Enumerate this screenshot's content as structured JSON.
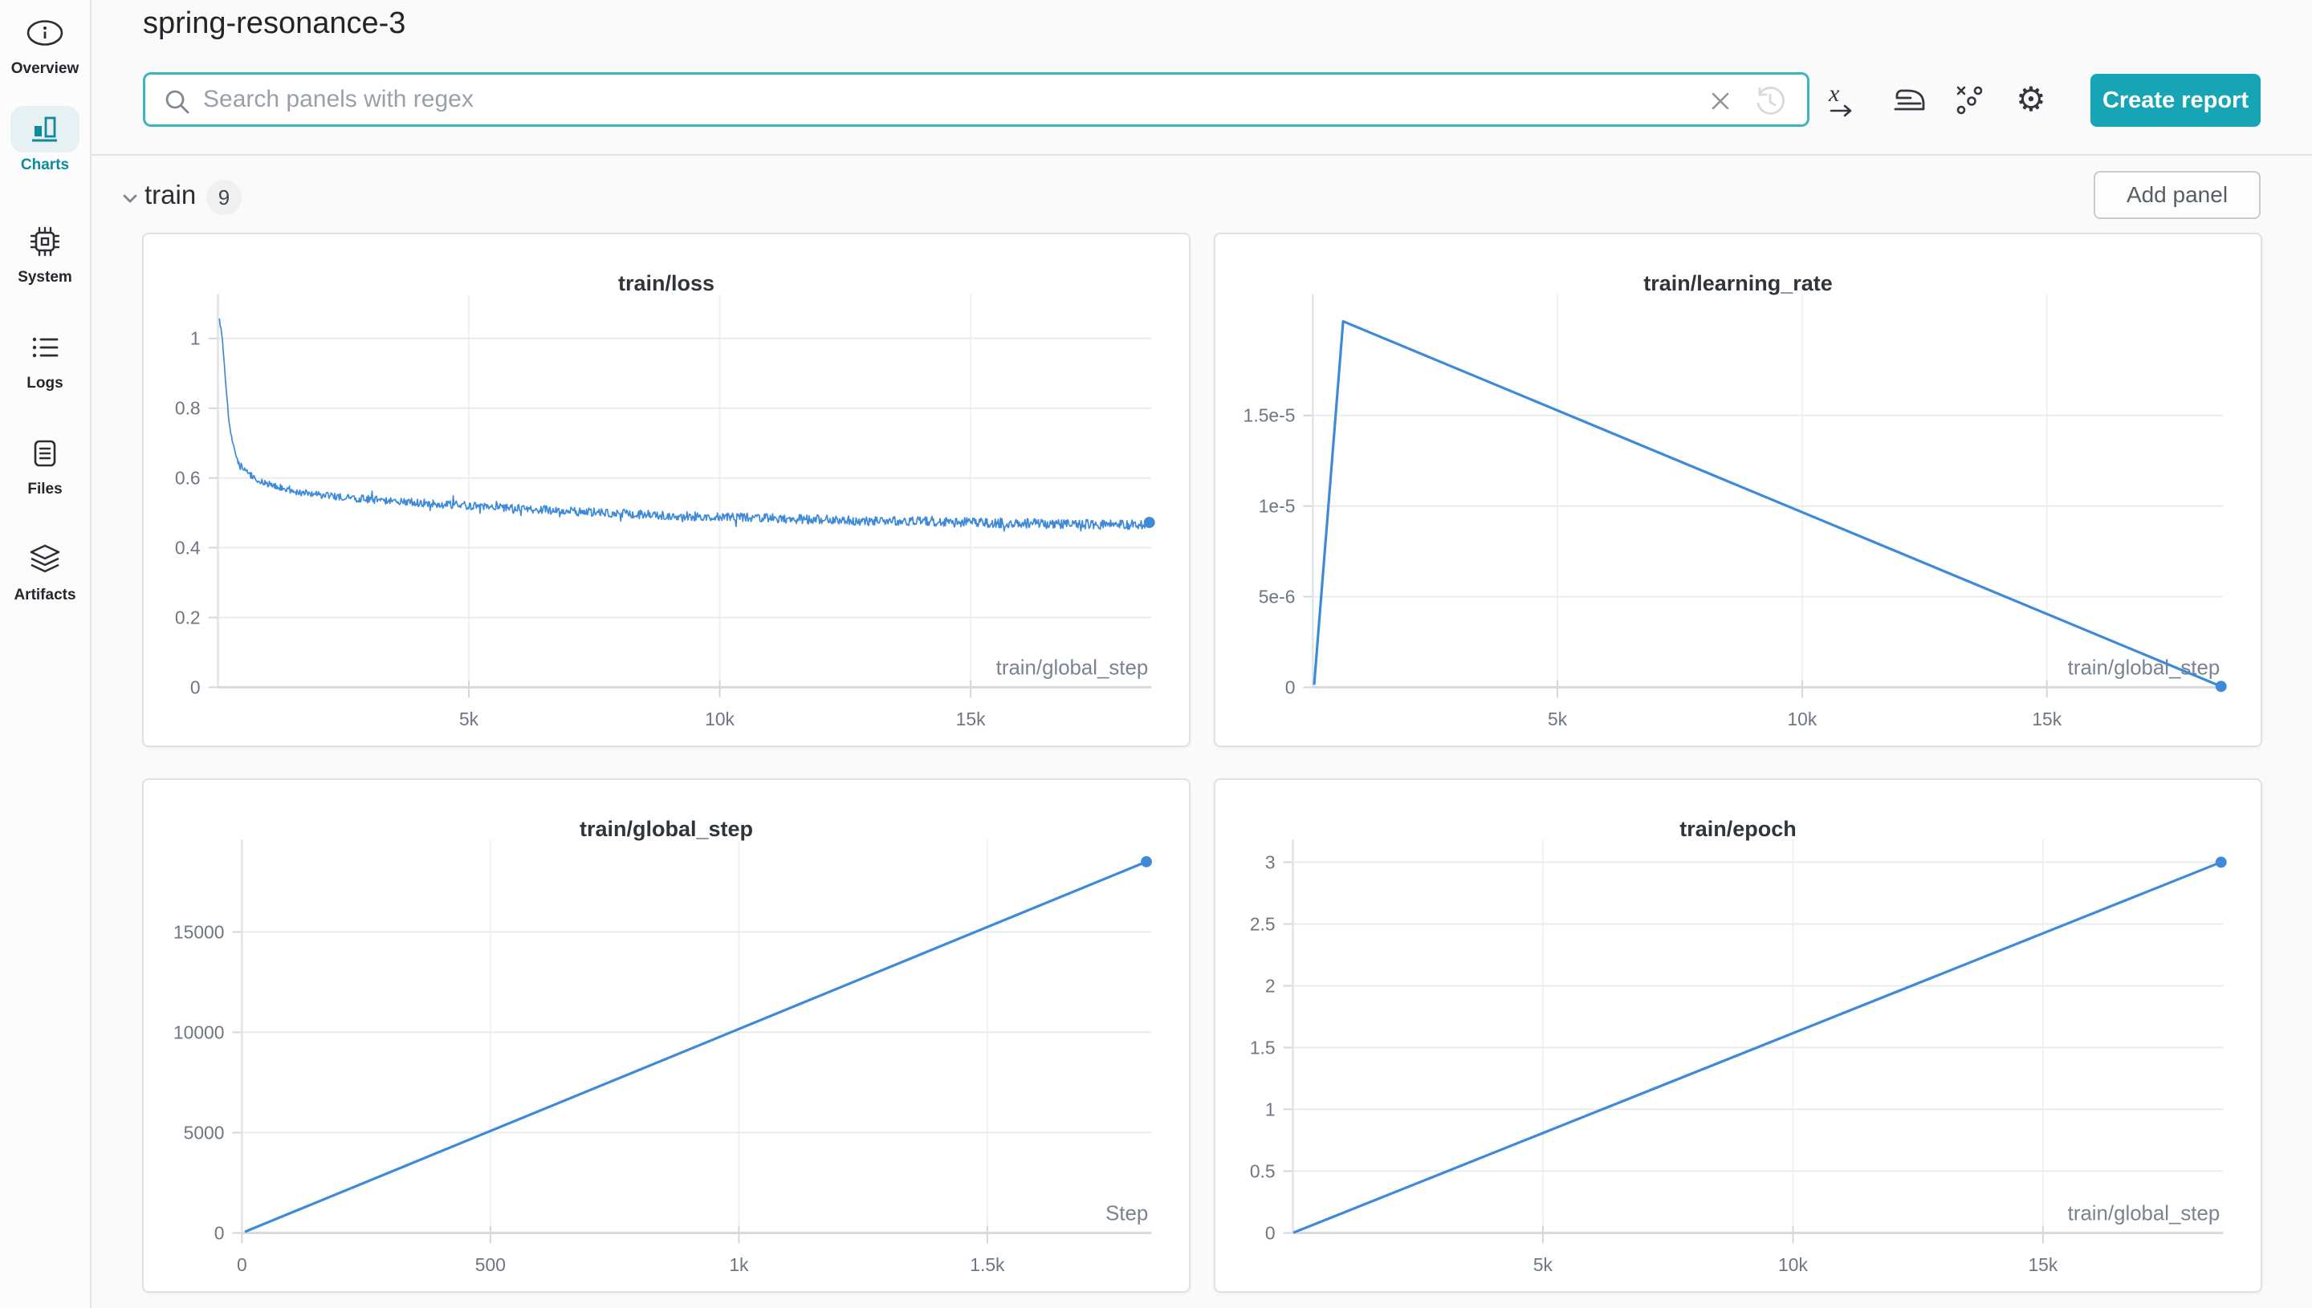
{
  "header": {
    "title": "spring-resonance-3"
  },
  "sidebar": {
    "items": [
      {
        "label": "Overview",
        "icon": "info-icon",
        "active": false
      },
      {
        "label": "Charts",
        "icon": "bar-chart-icon",
        "active": true
      },
      {
        "label": "System",
        "icon": "cpu-icon",
        "active": false
      },
      {
        "label": "Logs",
        "icon": "list-icon",
        "active": false
      },
      {
        "label": "Files",
        "icon": "document-icon",
        "active": false
      },
      {
        "label": "Artifacts",
        "icon": "layers-icon",
        "active": false
      }
    ]
  },
  "toolbar": {
    "search_placeholder": "Search panels with regex",
    "create_report_label": "Create report",
    "icons": [
      "search",
      "clear-search",
      "history",
      "x-axis",
      "smoothing",
      "outliers",
      "settings-gear"
    ]
  },
  "section": {
    "name": "train",
    "count": "9",
    "add_panel_label": "Add panel"
  },
  "colors": {
    "accent_teal": "#17a4b4",
    "search_border": "#3bb5c4",
    "active_pill_bg": "#e7f1f3",
    "active_text": "#0d8a9d",
    "line_blue": "#3e8ad8",
    "grid": "#e9ebef",
    "axis": "#d6dade",
    "text_primary": "#24292e",
    "text_secondary": "#6e7682",
    "panel_border": "#dfe1e4"
  },
  "chart_data": [
    {
      "type": "line",
      "title": "train/loss",
      "xlabel": "train/global_step",
      "xlim": [
        0,
        18600
      ],
      "ylim": [
        0,
        1.07
      ],
      "grid": true,
      "legend": false,
      "end_dot": true,
      "x_ticks": [
        {
          "v": 5000,
          "label": "5k"
        },
        {
          "v": 10000,
          "label": "10k"
        },
        {
          "v": 15000,
          "label": "15k"
        }
      ],
      "y_ticks": [
        {
          "v": 0,
          "label": "0"
        },
        {
          "v": 0.2,
          "label": "0.2"
        },
        {
          "v": 0.4,
          "label": "0.4"
        },
        {
          "v": 0.6,
          "label": "0.6"
        },
        {
          "v": 0.8,
          "label": "0.8"
        },
        {
          "v": 1,
          "label": "1"
        }
      ],
      "layout": {
        "margin_left": 91
      },
      "series": [
        {
          "name": "spring-resonance-3",
          "color": "#3e8ad8",
          "trend": [
            [
              30,
              1.05
            ],
            [
              70,
              1.02
            ],
            [
              110,
              0.96
            ],
            [
              150,
              0.88
            ],
            [
              200,
              0.79
            ],
            [
              260,
              0.72
            ],
            [
              330,
              0.675
            ],
            [
              420,
              0.64
            ],
            [
              520,
              0.625
            ],
            [
              640,
              0.61
            ],
            [
              800,
              0.595
            ],
            [
              1000,
              0.582
            ],
            [
              1250,
              0.57
            ],
            [
              1550,
              0.56
            ],
            [
              1900,
              0.553
            ],
            [
              2300,
              0.547
            ],
            [
              2800,
              0.541
            ],
            [
              3400,
              0.535
            ],
            [
              4000,
              0.529
            ],
            [
              4700,
              0.523
            ],
            [
              5500,
              0.516
            ],
            [
              6400,
              0.509
            ],
            [
              7400,
              0.502
            ],
            [
              8400,
              0.496
            ],
            [
              9400,
              0.491
            ],
            [
              10400,
              0.487
            ],
            [
              11400,
              0.483
            ],
            [
              12400,
              0.479
            ],
            [
              13400,
              0.4765
            ],
            [
              14400,
              0.474
            ],
            [
              15400,
              0.4715
            ],
            [
              16400,
              0.4695
            ],
            [
              17400,
              0.4675
            ],
            [
              18560,
              0.4655
            ]
          ],
          "noise": {
            "seed": 20240,
            "samples": 1250,
            "amp_start": 0.006,
            "amp_end": 0.0145,
            "spike_prob": 0.06,
            "spike_scale": 0.03
          }
        }
      ]
    },
    {
      "type": "line",
      "title": "train/learning_rate",
      "xlabel": "train/global_step",
      "xlim": [
        0,
        18600
      ],
      "ylim": [
        0,
        2.06e-05
      ],
      "grid": true,
      "legend": false,
      "end_dot": true,
      "x_ticks": [
        {
          "v": 5000,
          "label": "5k"
        },
        {
          "v": 10000,
          "label": "10k"
        },
        {
          "v": 15000,
          "label": "15k"
        }
      ],
      "y_ticks": [
        {
          "v": 0,
          "label": "0"
        },
        {
          "v": 5e-06,
          "label": "5e-6"
        },
        {
          "v": 1e-05,
          "label": "1e-5"
        },
        {
          "v": 1.5e-05,
          "label": "1.5e-5"
        }
      ],
      "layout": {
        "margin_left": 120
      },
      "series": [
        {
          "name": "spring-resonance-3",
          "color": "#3e8ad8",
          "points": [
            [
              30,
              2e-07
            ],
            [
              620,
              2.02e-05
            ],
            [
              18560,
              5e-08
            ]
          ]
        }
      ]
    },
    {
      "type": "line",
      "title": "train/global_step",
      "xlabel": "Step",
      "xlim": [
        0,
        1830
      ],
      "ylim": [
        0,
        18600
      ],
      "grid": true,
      "legend": false,
      "end_dot": true,
      "x_ticks": [
        {
          "v": 0,
          "label": "0"
        },
        {
          "v": 500,
          "label": "500"
        },
        {
          "v": 1000,
          "label": "1k"
        },
        {
          "v": 1500,
          "label": "1.5k"
        }
      ],
      "y_ticks": [
        {
          "v": 0,
          "label": "0"
        },
        {
          "v": 5000,
          "label": "5000"
        },
        {
          "v": 10000,
          "label": "10000"
        },
        {
          "v": 15000,
          "label": "15000"
        }
      ],
      "layout": {
        "margin_left": 121
      },
      "series": [
        {
          "name": "spring-resonance-3",
          "color": "#3e8ad8",
          "points": [
            [
              8,
              80
            ],
            [
              1820,
              18500
            ]
          ]
        }
      ]
    },
    {
      "type": "line",
      "title": "train/epoch",
      "xlabel": "train/global_step",
      "xlim": [
        0,
        18600
      ],
      "ylim": [
        0,
        3.02
      ],
      "grid": true,
      "legend": false,
      "end_dot": true,
      "x_ticks": [
        {
          "v": 5000,
          "label": "5k"
        },
        {
          "v": 10000,
          "label": "10k"
        },
        {
          "v": 15000,
          "label": "15k"
        }
      ],
      "y_ticks": [
        {
          "v": 0,
          "label": "0"
        },
        {
          "v": 0.5,
          "label": "0.5"
        },
        {
          "v": 1,
          "label": "1"
        },
        {
          "v": 1.5,
          "label": "1.5"
        },
        {
          "v": 2,
          "label": "2"
        },
        {
          "v": 2.5,
          "label": "2.5"
        },
        {
          "v": 3,
          "label": "3"
        }
      ],
      "layout": {
        "margin_left": 95
      },
      "series": [
        {
          "name": "spring-resonance-3",
          "color": "#3e8ad8",
          "points": [
            [
              30,
              0.005
            ],
            [
              18560,
              3.0
            ]
          ]
        }
      ]
    }
  ]
}
